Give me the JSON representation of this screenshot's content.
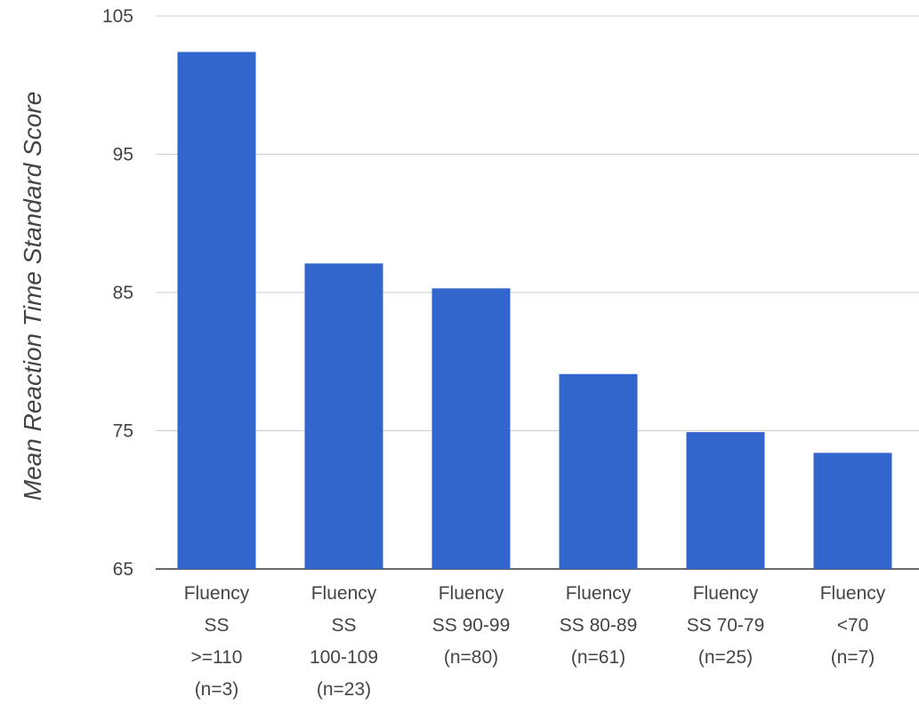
{
  "chart_data": {
    "type": "bar",
    "ylabel": "Mean Reaction Time Standard Score",
    "xlabel": "",
    "ylim": [
      65,
      105
    ],
    "yticks": [
      65,
      75,
      85,
      95,
      105
    ],
    "grid": true,
    "bar_color": "#3366cc",
    "categories": [
      [
        "Fluency",
        "SS",
        ">=110",
        "(n=3)"
      ],
      [
        "Fluency",
        "SS",
        "100-109",
        "(n=23)"
      ],
      [
        "Fluency",
        "SS 90-99",
        "(n=80)"
      ],
      [
        "Fluency",
        "SS 80-89",
        "(n=61)"
      ],
      [
        "Fluency",
        "SS 70-79",
        "(n=25)"
      ],
      [
        "Fluency",
        "<70",
        "(n=7)"
      ]
    ],
    "values": [
      102.4,
      87.1,
      85.3,
      79.1,
      74.9,
      73.4
    ]
  }
}
